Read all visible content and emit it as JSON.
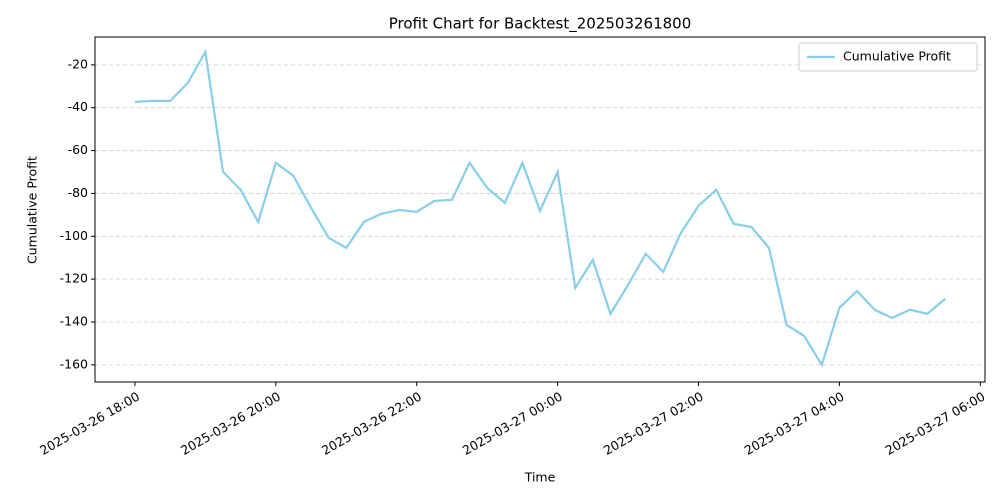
{
  "chart_data": {
    "type": "line",
    "title": "Profit Chart for Backtest_202503261800",
    "xlabel": "Time",
    "ylabel": "Cumulative Profit",
    "x": [
      "2025-03-26 18:00",
      "2025-03-26 18:15",
      "2025-03-26 18:30",
      "2025-03-26 18:45",
      "2025-03-26 19:00",
      "2025-03-26 19:15",
      "2025-03-26 19:30",
      "2025-03-26 19:45",
      "2025-03-26 20:00",
      "2025-03-26 20:15",
      "2025-03-26 20:30",
      "2025-03-26 20:45",
      "2025-03-26 21:00",
      "2025-03-26 21:15",
      "2025-03-26 21:30",
      "2025-03-26 21:45",
      "2025-03-26 22:00",
      "2025-03-26 22:15",
      "2025-03-26 22:30",
      "2025-03-26 22:45",
      "2025-03-26 23:00",
      "2025-03-26 23:15",
      "2025-03-26 23:30",
      "2025-03-26 23:45",
      "2025-03-27 00:00",
      "2025-03-27 00:15",
      "2025-03-27 00:30",
      "2025-03-27 00:45",
      "2025-03-27 01:00",
      "2025-03-27 01:15",
      "2025-03-27 01:30",
      "2025-03-27 01:45",
      "2025-03-27 02:00",
      "2025-03-27 02:15",
      "2025-03-27 02:30",
      "2025-03-27 02:45",
      "2025-03-27 03:00",
      "2025-03-27 03:15",
      "2025-03-27 03:30",
      "2025-03-27 03:45",
      "2025-03-27 04:00",
      "2025-03-27 04:15",
      "2025-03-27 04:30",
      "2025-03-27 04:45",
      "2025-03-27 05:00",
      "2025-03-27 05:15",
      "2025-03-27 05:30"
    ],
    "series": [
      {
        "name": "Cumulative Profit",
        "color": "#87ceeb",
        "values": [
          -37.3,
          -36.8,
          -36.8,
          -28.4,
          -13.9,
          -69.9,
          -78.3,
          -93.3,
          -65.7,
          -71.8,
          -86.7,
          -100.7,
          -105.4,
          -93.3,
          -89.5,
          -87.7,
          -88.6,
          -83.5,
          -83.0,
          -65.7,
          -77.4,
          -84.4,
          -65.7,
          -88.1,
          -69.9,
          -124.1,
          -111.0,
          -136.2,
          -122.7,
          -108.2,
          -116.6,
          -98.4,
          -85.8,
          -78.3,
          -94.2,
          -95.6,
          -105.4,
          -141.3,
          -146.5,
          -160.0,
          -133.4,
          -125.5,
          -134.3,
          -138.1,
          -134.3,
          -136.2,
          -129.2
        ]
      }
    ],
    "xlim": [
      "2025-03-26 17:26",
      "2025-03-27 06:04"
    ],
    "xticks": [
      "2025-03-26 18:00",
      "2025-03-26 20:00",
      "2025-03-26 22:00",
      "2025-03-27 00:00",
      "2025-03-27 02:00",
      "2025-03-27 04:00",
      "2025-03-27 06:00"
    ],
    "ylim": [
      -168,
      -7
    ],
    "yticks": [
      -160,
      -140,
      -120,
      -100,
      -80,
      -60,
      -40,
      -20
    ],
    "grid": true,
    "legend": "upper right"
  }
}
